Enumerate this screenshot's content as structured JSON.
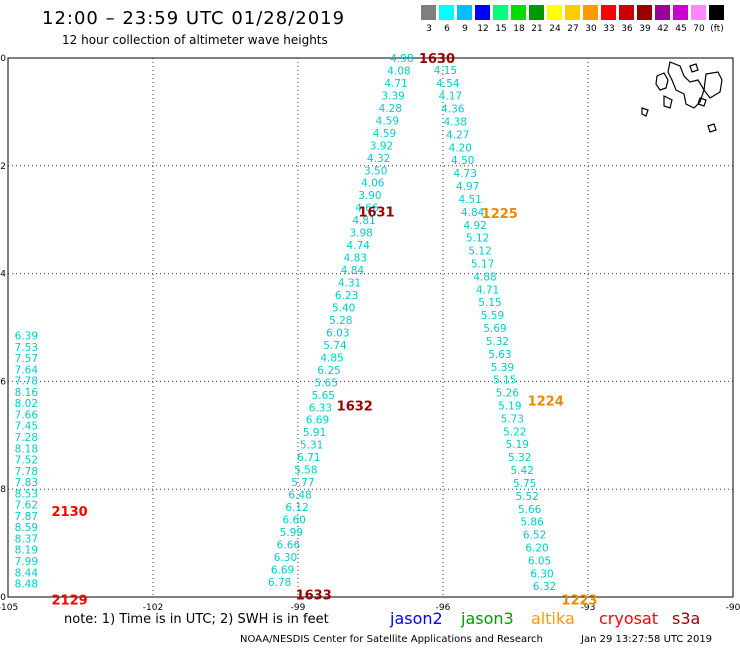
{
  "title": "12:00 – 23:59 UTC 01/28/2019",
  "subtitle": "12 hour collection of altimeter wave heights",
  "legend": {
    "colors": [
      "#7f7f7f",
      "#00ffff",
      "#00bfff",
      "#0000ff",
      "#00ff7f",
      "#00dd00",
      "#009900",
      "#ffff00",
      "#ffcc00",
      "#ff9900",
      "#ff0000",
      "#cc0000",
      "#990000",
      "#990099",
      "#cc00cc",
      "#ff88ff",
      "#000000"
    ],
    "labels": [
      "3",
      "6",
      "9",
      "12",
      "15",
      "18",
      "21",
      "24",
      "27",
      "30",
      "33",
      "36",
      "39",
      "42",
      "45",
      "70",
      "(ft)"
    ]
  },
  "chart_data": {
    "type": "scatter",
    "xlim": [
      -105,
      -90
    ],
    "ylim": [
      -10,
      0
    ],
    "xticks": [
      "-105",
      "-102",
      "-99",
      "-96",
      "-93",
      "-90"
    ],
    "yticks": [
      "0",
      "-2",
      "-4",
      "-6",
      "-8",
      "-10"
    ],
    "grid": true,
    "tracks": [
      {
        "satellite": "cryosat",
        "color": "#00cccc",
        "start_time": "2129",
        "end_time": "2130",
        "time_color": "#ff0000",
        "start": [
          -104.62,
          -9.75
        ],
        "end": [
          -104.62,
          -5.15
        ],
        "values": [
          "8.48",
          "8.44",
          "7.99",
          "8.19",
          "8.37",
          "8.59",
          "7.87",
          "7.62",
          "8.53",
          "7.83",
          "7.78",
          "7.52",
          "8.18",
          "7.28",
          "7.45",
          "7.66",
          "8.02",
          "8.16",
          "7.78",
          "7.64",
          "7.57",
          "7.53",
          "6.39"
        ]
      },
      {
        "satellite": "jason3",
        "color": "#00cccc",
        "start_time": "1633",
        "end_time": "1630",
        "time_color": "#990000",
        "start": [
          -99.38,
          -9.72
        ],
        "end": [
          -96.85,
          0
        ],
        "values": [
          "6.78",
          "6.69",
          "6.30",
          "6.66",
          "5.99",
          "6.60",
          "6.12",
          "6.48",
          "5.77",
          "5.58",
          "6.71",
          "5.31",
          "5.91",
          "6.69",
          "6.33",
          "5.65",
          "5.65",
          "6.25",
          "4.85",
          "5.74",
          "6.03",
          "5.28",
          "5.40",
          "6.23",
          "4.31",
          "4.84",
          "4.83",
          "4.74",
          "3.98",
          "4.81",
          "4.66",
          "3.90",
          "4.06",
          "3.50",
          "4.32",
          "3.92",
          "4.59",
          "4.59",
          "4.28",
          "3.39",
          "4.71",
          "4.08",
          "4.98"
        ]
      },
      {
        "satellite": "altika",
        "color": "#00cccc",
        "start_time": "1225",
        "end_time": "1223",
        "time_color": "#ee8800",
        "start": [
          -95.95,
          -0.22
        ],
        "end": [
          -93.9,
          -9.8
        ],
        "values": [
          "4.15",
          "4.54",
          "4.17",
          "4.36",
          "4.38",
          "4.27",
          "4.20",
          "4.50",
          "4.73",
          "4.97",
          "4.51",
          "4.84",
          "4.92",
          "5.12",
          "5.12",
          "5.17",
          "4.88",
          "4.71",
          "5.15",
          "5.59",
          "5.69",
          "5.32",
          "5.63",
          "5.39",
          "5.15",
          "5.26",
          "5.19",
          "5.73",
          "5.22",
          "5.19",
          "5.32",
          "5.42",
          "5.75",
          "5.52",
          "5.66",
          "5.86",
          "6.52",
          "6.20",
          "6.05",
          "6.30",
          "6.32"
        ]
      }
    ]
  },
  "time_labels": [
    {
      "text": "1630",
      "x": -96.5,
      "y": 0,
      "color": "#990000"
    },
    {
      "text": "1631",
      "x": -97.75,
      "y": -2.85,
      "color": "#990000"
    },
    {
      "text": "1632",
      "x": -98.2,
      "y": -6.45,
      "color": "#990000"
    },
    {
      "text": "1633",
      "x": -99.05,
      "y": -9.95,
      "color": "#990000"
    },
    {
      "text": "1225",
      "x": -95.2,
      "y": -2.88,
      "color": "#ee8800"
    },
    {
      "text": "1224",
      "x": -94.25,
      "y": -6.35,
      "color": "#ee8800"
    },
    {
      "text": "1223",
      "x": -93.55,
      "y": -10.05,
      "color": "#ee8800"
    },
    {
      "text": "2130",
      "x": -104.1,
      "y": -8.4,
      "color": "#ff0000"
    },
    {
      "text": "2129",
      "x": -104.1,
      "y": -10.05,
      "color": "#ff0000"
    }
  ],
  "notes": {
    "text": "note:  1) Time is in UTC;  2) SWH is in feet"
  },
  "satellites": [
    {
      "name": "jason2",
      "color": "#0000ff"
    },
    {
      "name": "jason3",
      "color": "#009900"
    },
    {
      "name": "altika",
      "color": "#ff9900"
    },
    {
      "name": "cryosat",
      "color": "#ff0000"
    },
    {
      "name": "s3a",
      "color": "#990000"
    }
  ],
  "credit": "NOAA/NESDIS Center for Satellite Applications and Research",
  "timestamp": "Jan 29 13:27:58 UTC 2019"
}
